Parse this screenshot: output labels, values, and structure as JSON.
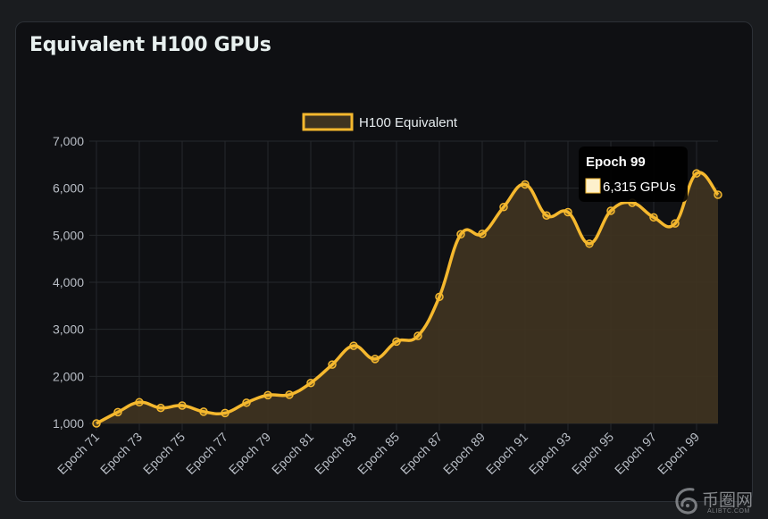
{
  "card": {
    "title": "Equivalent H100 GPUs"
  },
  "tooltip": {
    "title": "Epoch 99",
    "value_label": "6,315 GPUs"
  },
  "watermark": {
    "text_cn": "币圈网",
    "text_en": "ALIBTC.COM"
  },
  "colors": {
    "line": "#f5b82e",
    "fill": "#3e3320",
    "grid": "#26282c",
    "tick": "#b9bec6",
    "tooltip_bg": "#000000",
    "swatch": "#fdf0cc"
  },
  "chart_data": {
    "type": "area",
    "title": "Equivalent H100 GPUs",
    "xlabel": "",
    "ylabel": "",
    "legend": {
      "position": "top",
      "entries": [
        "H100 Equivalent"
      ]
    },
    "grid": true,
    "ylim": [
      1000,
      7000
    ],
    "y_ticks": [
      "1,000",
      "2,000",
      "3,000",
      "4,000",
      "5,000",
      "6,000",
      "7,000"
    ],
    "y_tick_values": [
      1000,
      2000,
      3000,
      4000,
      5000,
      6000,
      7000
    ],
    "x_tick_labels": [
      "Epoch 71",
      "Epoch 73",
      "Epoch 75",
      "Epoch 77",
      "Epoch 79",
      "Epoch 81",
      "Epoch 83",
      "Epoch 85",
      "Epoch 87",
      "Epoch 89",
      "Epoch 91",
      "Epoch 93",
      "Epoch 95",
      "Epoch 97",
      "Epoch 99"
    ],
    "categories": [
      "Epoch 71",
      "Epoch 72",
      "Epoch 73",
      "Epoch 74",
      "Epoch 75",
      "Epoch 76",
      "Epoch 77",
      "Epoch 78",
      "Epoch 79",
      "Epoch 80",
      "Epoch 81",
      "Epoch 82",
      "Epoch 83",
      "Epoch 84",
      "Epoch 85",
      "Epoch 86",
      "Epoch 87",
      "Epoch 88",
      "Epoch 89",
      "Epoch 90",
      "Epoch 91",
      "Epoch 92",
      "Epoch 93",
      "Epoch 94",
      "Epoch 95",
      "Epoch 96",
      "Epoch 97",
      "Epoch 98",
      "Epoch 99",
      "Epoch 100"
    ],
    "series": [
      {
        "name": "H100 Equivalent",
        "values": [
          1000,
          1240,
          1450,
          1330,
          1380,
          1250,
          1220,
          1440,
          1600,
          1610,
          1860,
          2250,
          2650,
          2370,
          2740,
          2860,
          3690,
          5020,
          5030,
          5600,
          6080,
          5420,
          5490,
          4820,
          5520,
          5690,
          5380,
          5250,
          6315,
          5860
        ]
      }
    ],
    "active_point": "Epoch 99"
  }
}
